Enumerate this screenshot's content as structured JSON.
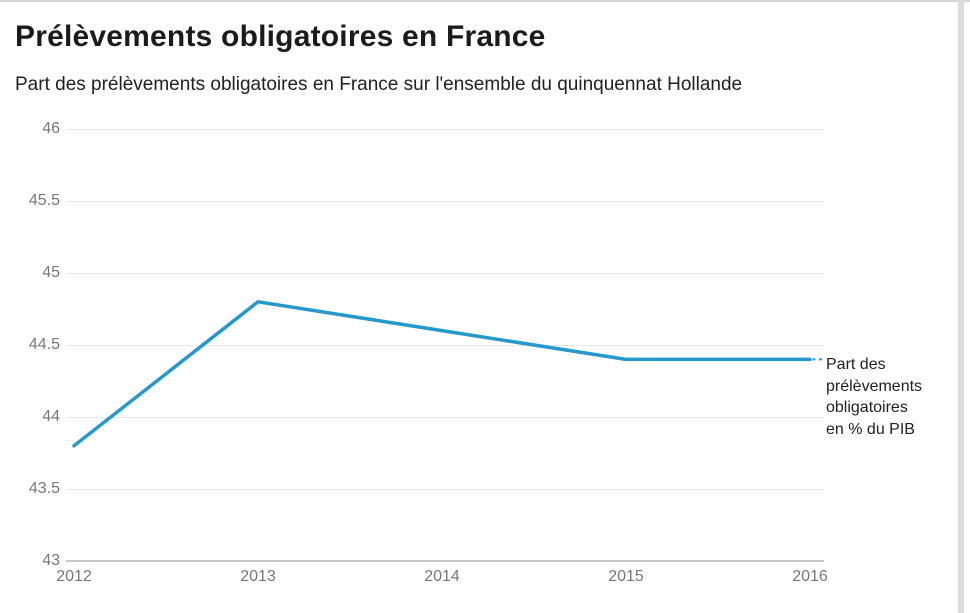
{
  "header": {
    "title": "Prélèvements obligatoires en France",
    "subtitle": "Part des prélèvements obligatoires en France sur l'ensemble du quinquennat Hollande"
  },
  "chart_data": {
    "type": "line",
    "title": "Prélèvements obligatoires en France",
    "subtitle": "Part des prélèvements obligatoires en France sur l'ensemble du quinquennat Hollande",
    "categories": [
      "2012",
      "2013",
      "2014",
      "2015",
      "2016"
    ],
    "series": [
      {
        "name": "Part des prélèvements obligatoires en % du PIB",
        "values": [
          43.8,
          44.8,
          44.6,
          44.4,
          44.4
        ]
      }
    ],
    "xlabel": "",
    "ylabel": "",
    "ylim": [
      43,
      46
    ],
    "ytick_step": 0.5,
    "ytick_labels": [
      "46",
      "45.5",
      "45",
      "44.5",
      "44",
      "43.5",
      "43"
    ],
    "grid": true,
    "legend_position": "right-of-line-annotation",
    "annotation_label": "Part des\nprélèvements\nobligatoires\nen % du PIB",
    "line_color": "#2598CE",
    "axis_label_color": "#75777a",
    "gridline_color": "#e7e7e7",
    "baseline_color": "#c6c6c6"
  }
}
